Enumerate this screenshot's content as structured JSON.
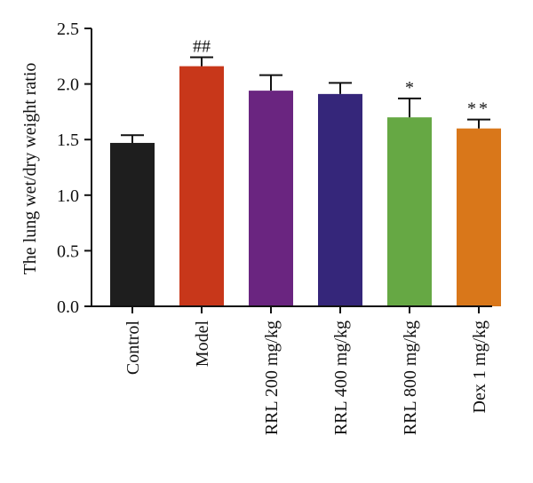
{
  "chart_data": {
    "type": "bar",
    "ylabel": "The lung wet/dry weight ratio",
    "xlabel": "",
    "ylim": [
      0.0,
      2.5
    ],
    "yticks": [
      "0.0",
      "0.5",
      "1.0",
      "1.5",
      "2.0",
      "2.5"
    ],
    "categories": [
      "Control",
      "Model",
      "RRL 200 mg/kg",
      "RRL 400 mg/kg",
      "RRL 800 mg/kg",
      "Dex 1 mg/kg"
    ],
    "values": [
      1.47,
      2.16,
      1.94,
      1.91,
      1.7,
      1.6
    ],
    "errors": [
      0.07,
      0.08,
      0.14,
      0.1,
      0.17,
      0.08
    ],
    "annotations": [
      "",
      "##",
      "",
      "",
      "*",
      "**"
    ],
    "colors": [
      "#1e1e1e",
      "#c8371a",
      "#6a2580",
      "#35267a",
      "#66a844",
      "#d9771a"
    ],
    "grid": false
  }
}
